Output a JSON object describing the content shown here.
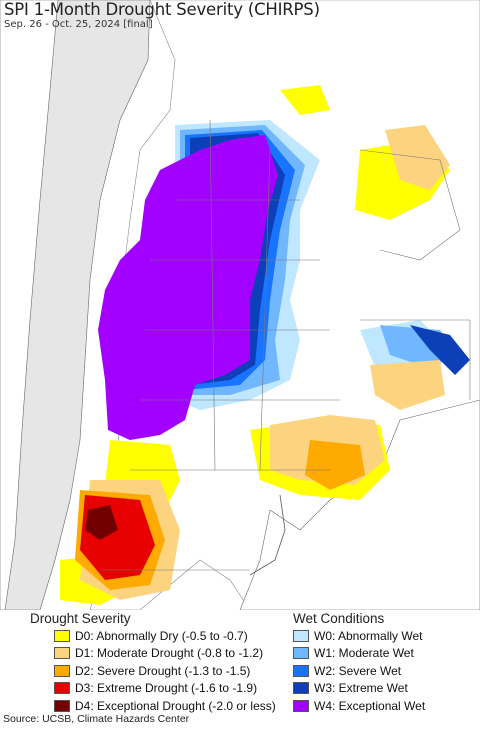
{
  "title": "SPI 1-Month Drought Severity (CHIRPS)",
  "subtitle": "Sep. 26 - Oct. 25, 2024 [final]",
  "legend": {
    "drought": {
      "heading": "Drought Severity",
      "items": [
        {
          "label": "D0: Abnormally Dry (-0.5 to -0.7)",
          "color": "#ffff00"
        },
        {
          "label": "D1: Moderate Drought (-0.8 to -1.2)",
          "color": "#fcd37f"
        },
        {
          "label": "D2: Severe Drought (-1.3 to -1.5)",
          "color": "#ffaa00"
        },
        {
          "label": "D3: Extreme Drought (-1.6 to -1.9)",
          "color": "#e60000"
        },
        {
          "label": "D4: Exceptional Drought (-2.0 or less)",
          "color": "#730000"
        }
      ]
    },
    "wet": {
      "heading": "Wet Conditions",
      "items": [
        {
          "label": "W0: Abnormally Wet",
          "color": "#bfe7ff"
        },
        {
          "label": "W1: Moderate Wet",
          "color": "#70b7ff"
        },
        {
          "label": "W2: Severe Wet",
          "color": "#1874ff"
        },
        {
          "label": "W3: Extreme Wet",
          "color": "#0d3fb8"
        },
        {
          "label": "W4: Exceptional Wet",
          "color": "#a200ff"
        }
      ]
    }
  },
  "source": "Source: UCSB, Climate Hazards Center"
}
